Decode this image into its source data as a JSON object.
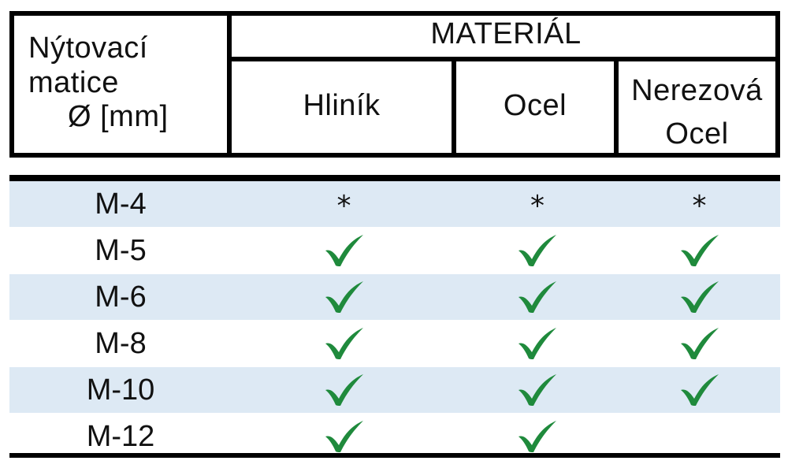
{
  "header": {
    "size_label_lines": [
      "Nýtovací",
      "matice",
      "Ø [mm]"
    ],
    "material_title": "MATERIÁL",
    "materials": [
      "Hliník",
      "Ocel",
      "Nerezová Ocel"
    ],
    "materials_line_split": {
      "stainless_line1": "Nerezová",
      "stainless_line2": "Ocel"
    }
  },
  "rows": [
    {
      "size": "M-4",
      "aluminium": "*",
      "steel": "*",
      "stainless": "*"
    },
    {
      "size": "M-5",
      "aluminium": "check",
      "steel": "check",
      "stainless": "check"
    },
    {
      "size": "M-6",
      "aluminium": "check",
      "steel": "check",
      "stainless": "check"
    },
    {
      "size": "M-8",
      "aluminium": "check",
      "steel": "check",
      "stainless": "check"
    },
    {
      "size": "M-10",
      "aluminium": "check",
      "steel": "check",
      "stainless": "check"
    },
    {
      "size": "M-12",
      "aluminium": "check",
      "steel": "check",
      "stainless": ""
    }
  ],
  "colors": {
    "check": "#1f8a3c",
    "row_shade": "#dde9f4",
    "border": "#000000"
  }
}
